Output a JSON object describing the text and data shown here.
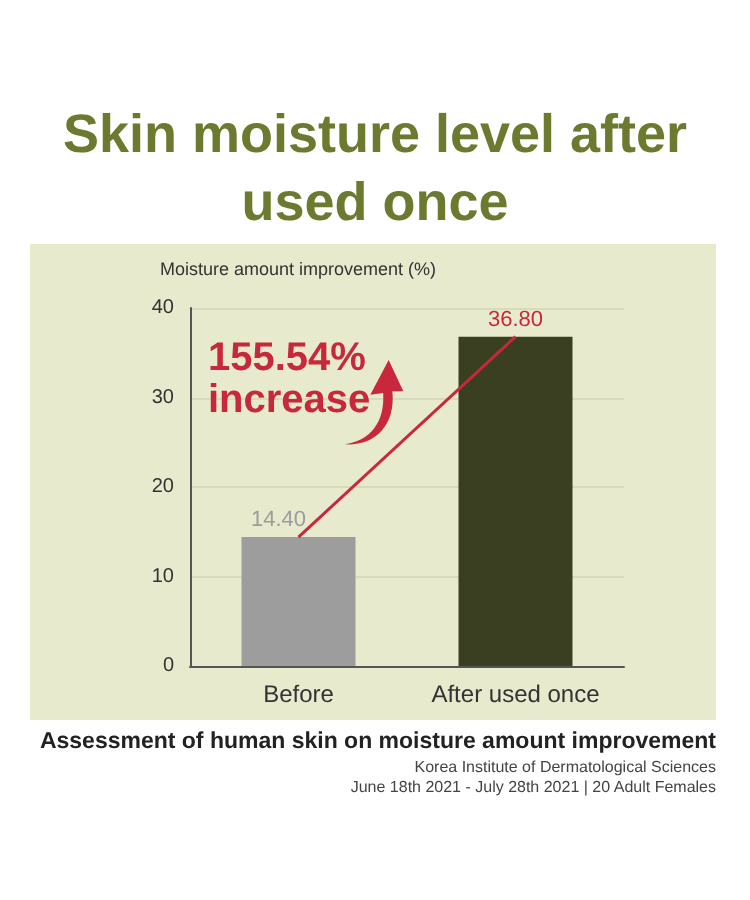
{
  "chart_data": {
    "type": "bar",
    "title": "Skin moisture level after used once",
    "ylabel": "Moisture amount improvement (%)",
    "categories": [
      "Before",
      "After used once"
    ],
    "series": [
      {
        "values": [
          14.4,
          36.8
        ],
        "colors": [
          "#9d9d9d",
          "#3b3f22"
        ],
        "value_labels": [
          "14.40",
          "36.80"
        ]
      },
      {
        "type": "line",
        "color": "#c8283c",
        "values": [
          14.4,
          36.8
        ]
      }
    ],
    "marker": "none",
    "ylim": [
      0,
      40
    ],
    "yticks": [
      0,
      10,
      20,
      30,
      40
    ],
    "grid": "y",
    "annotations": [
      "155.54%\nincrease",
      "Assessment of human skin on moisture amount improvement",
      "Korea Institute of Dermatological Sciences",
      "June 18th 2021 - July 28th 2021 | 20 Adult Females"
    ]
  }
}
